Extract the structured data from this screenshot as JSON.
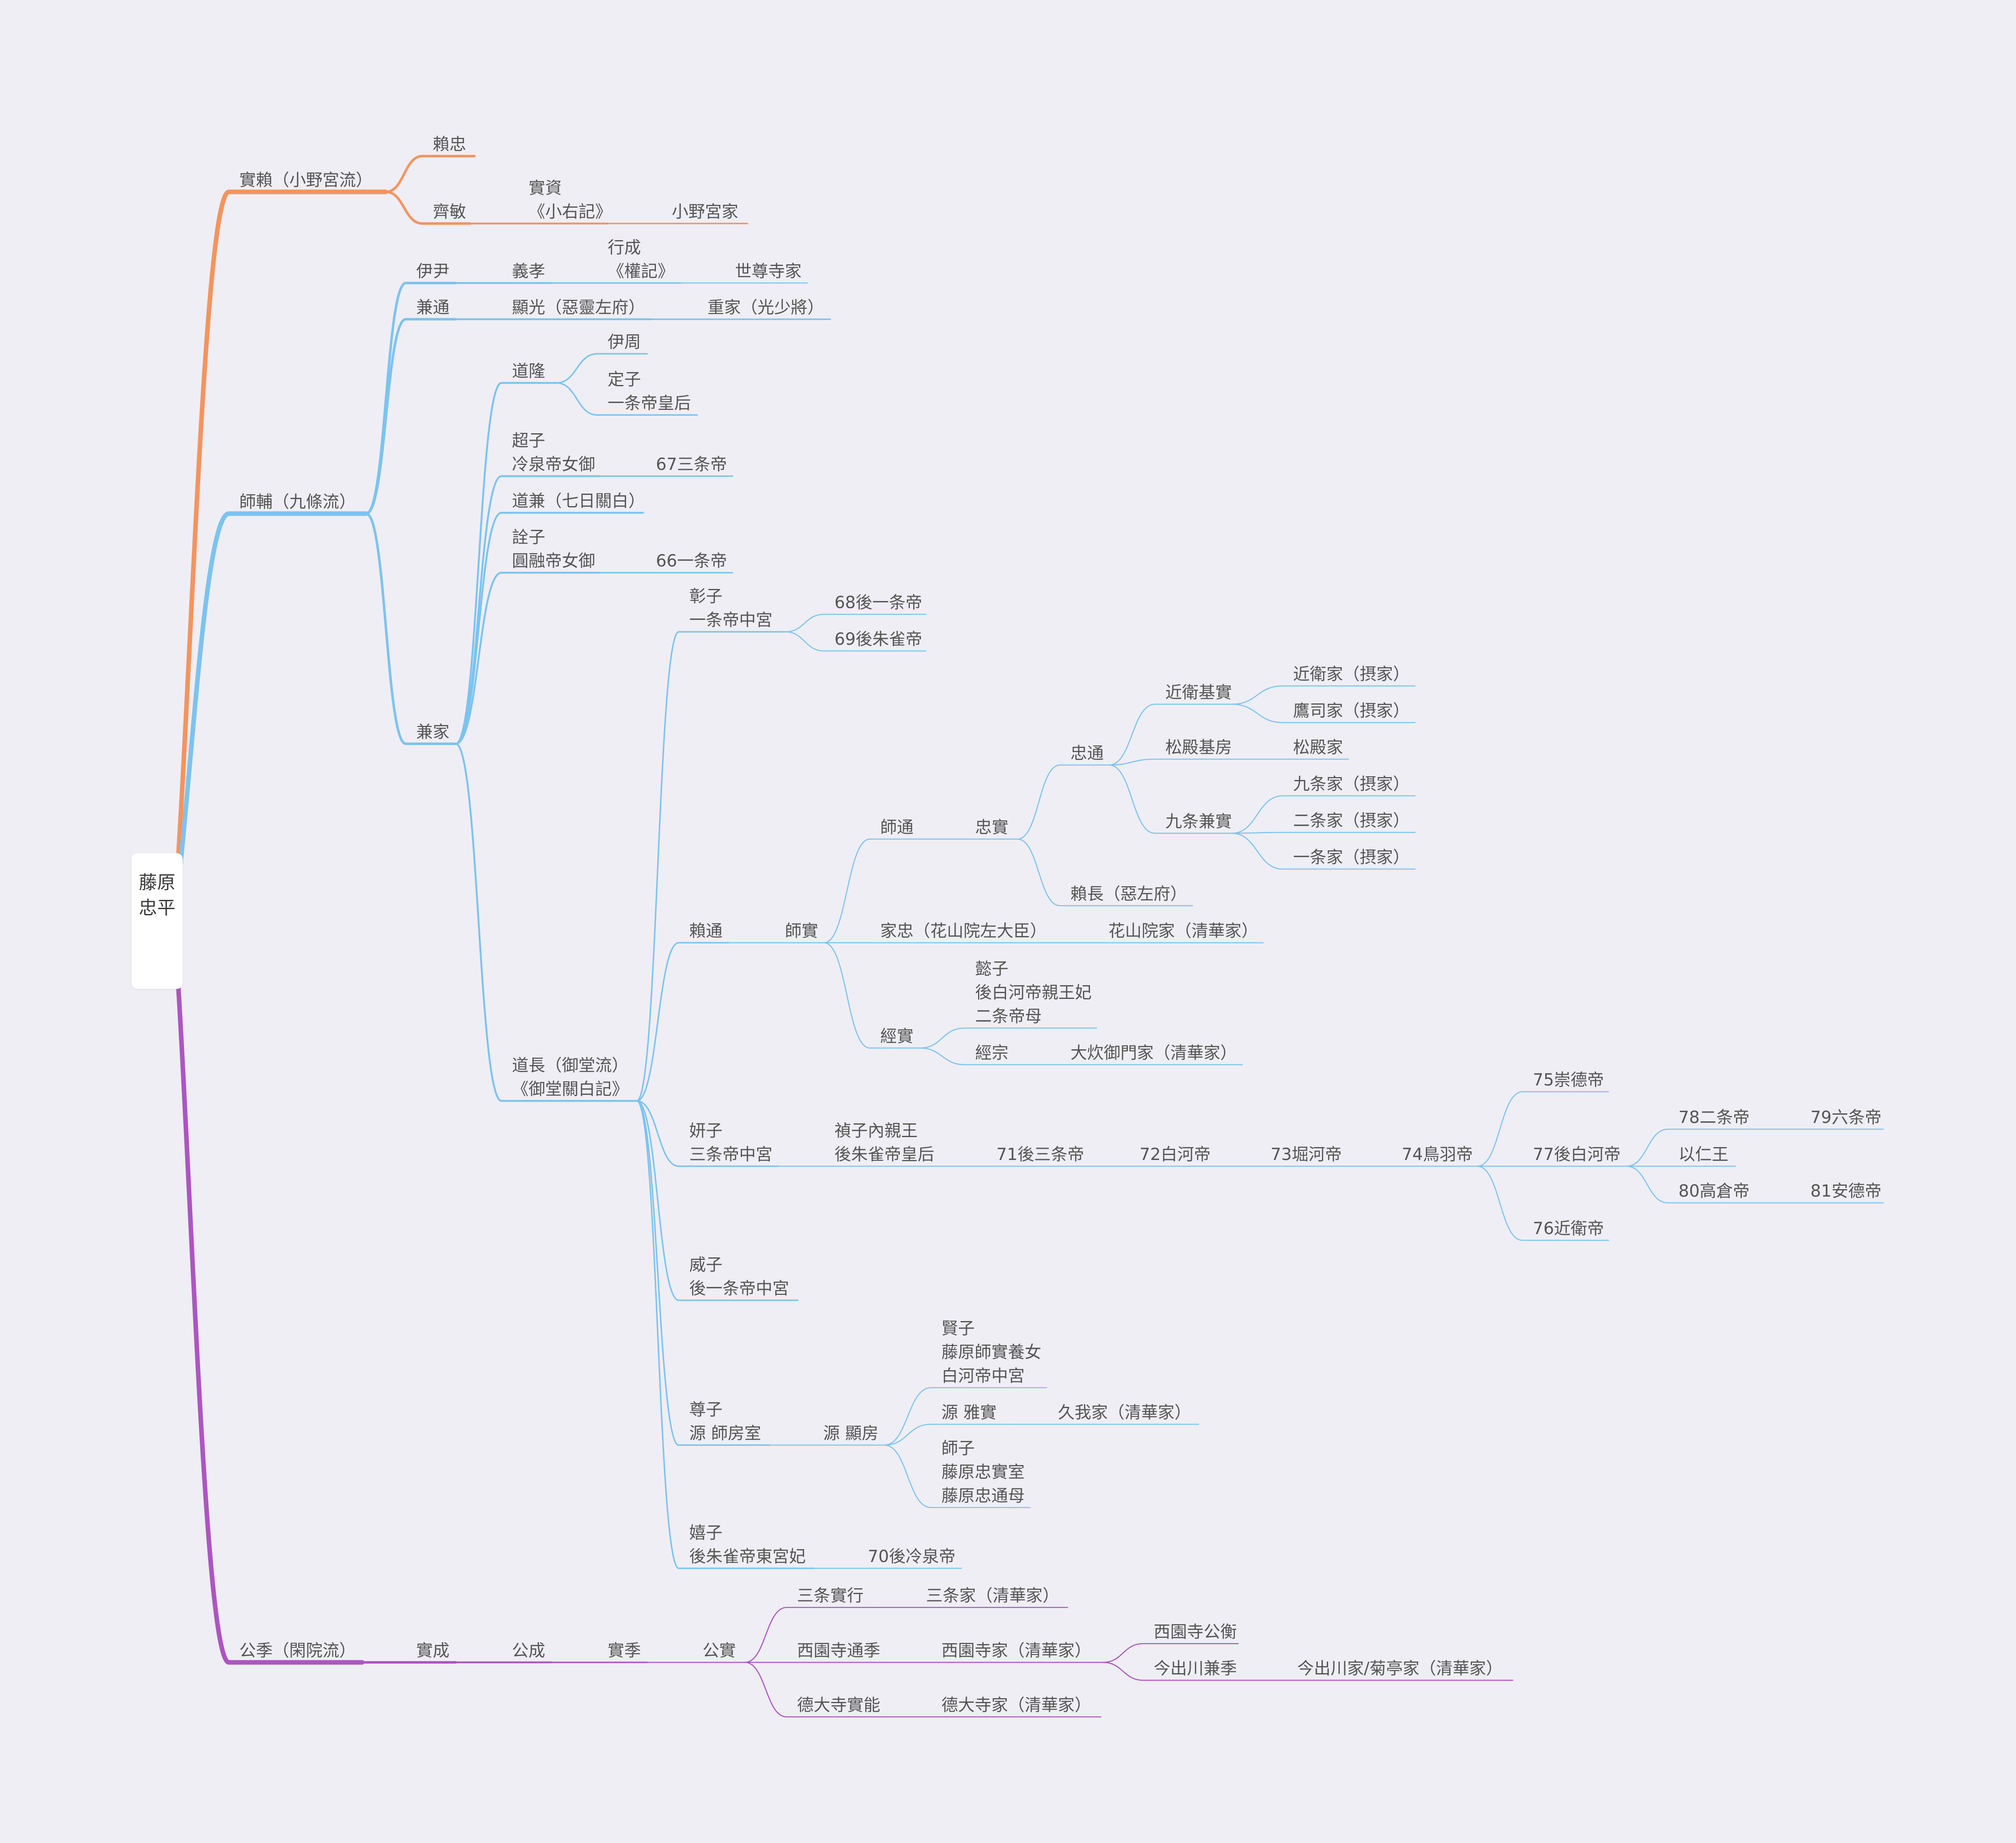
{
  "colors": {
    "background": "#efeef4",
    "orange": "#f4945f",
    "blue": "#7cc3ef",
    "purple": "#ad55c2",
    "text": "#555555"
  },
  "root": {
    "label": "藤原忠平"
  },
  "nodes": [
    {
      "id": "saneyori",
      "parent": "root",
      "color": "orange",
      "lines": [
        "實賴（小野宮流）"
      ]
    },
    {
      "id": "yoritada",
      "parent": "saneyori",
      "color": "orange",
      "lines": [
        "賴忠"
      ]
    },
    {
      "id": "tadatoshi",
      "parent": "saneyori",
      "color": "orange",
      "lines": [
        "齊敏"
      ]
    },
    {
      "id": "sanesuke",
      "parent": "tadatoshi",
      "color": "orange",
      "lines": [
        "實資",
        "《小右記》"
      ]
    },
    {
      "id": "onomiya",
      "parent": "sanesuke",
      "color": "orange",
      "lines": [
        "小野宮家"
      ]
    },
    {
      "id": "morosuke",
      "parent": "root",
      "color": "blue",
      "lines": [
        "師輔（九條流）"
      ]
    },
    {
      "id": "koremasa",
      "parent": "morosuke",
      "color": "blue",
      "lines": [
        "伊尹"
      ]
    },
    {
      "id": "yoshitaka",
      "parent": "koremasa",
      "color": "blue",
      "lines": [
        "義孝"
      ]
    },
    {
      "id": "yukinari",
      "parent": "yoshitaka",
      "color": "blue",
      "lines": [
        "行成",
        "《權記》"
      ]
    },
    {
      "id": "sesonji",
      "parent": "yukinari",
      "color": "blue",
      "lines": [
        "世尊寺家"
      ]
    },
    {
      "id": "kanemichi",
      "parent": "morosuke",
      "color": "blue",
      "lines": [
        "兼通"
      ]
    },
    {
      "id": "akimitsu",
      "parent": "kanemichi",
      "color": "blue",
      "lines": [
        "顯光（惡靈左府）"
      ]
    },
    {
      "id": "shigeie",
      "parent": "akimitsu",
      "color": "blue",
      "lines": [
        "重家（光少將）"
      ]
    },
    {
      "id": "kaneie",
      "parent": "morosuke",
      "color": "blue",
      "lines": [
        "兼家"
      ]
    },
    {
      "id": "michitaka",
      "parent": "kaneie",
      "color": "blue",
      "lines": [
        "道隆"
      ]
    },
    {
      "id": "korechika",
      "parent": "michitaka",
      "color": "blue",
      "lines": [
        "伊周"
      ]
    },
    {
      "id": "teishi",
      "parent": "michitaka",
      "color": "blue",
      "lines": [
        "定子",
        "一条帝皇后"
      ]
    },
    {
      "id": "choshi",
      "parent": "kaneie",
      "color": "blue",
      "lines": [
        "超子",
        "冷泉帝女御"
      ]
    },
    {
      "id": "sanjo67",
      "parent": "choshi",
      "color": "blue",
      "lines": [
        "67三条帝"
      ]
    },
    {
      "id": "michikane",
      "parent": "kaneie",
      "color": "blue",
      "lines": [
        "道兼（七日關白）"
      ]
    },
    {
      "id": "senshi",
      "parent": "kaneie",
      "color": "blue",
      "lines": [
        "詮子",
        "圓融帝女御"
      ]
    },
    {
      "id": "ichijo66",
      "parent": "senshi",
      "color": "blue",
      "lines": [
        "66一条帝"
      ]
    },
    {
      "id": "michinaga",
      "parent": "kaneie",
      "color": "blue",
      "lines": [
        "道長（御堂流）",
        "《御堂關白記》"
      ]
    },
    {
      "id": "shoshi",
      "parent": "michinaga",
      "color": "blue",
      "lines": [
        "彰子",
        "一条帝中宮"
      ]
    },
    {
      "id": "goichijo68",
      "parent": "shoshi",
      "color": "blue",
      "lines": [
        "68後一条帝"
      ]
    },
    {
      "id": "gosuzaku69",
      "parent": "shoshi",
      "color": "blue",
      "lines": [
        "69後朱雀帝"
      ]
    },
    {
      "id": "yorimichi",
      "parent": "michinaga",
      "color": "blue",
      "lines": [
        "賴通"
      ]
    },
    {
      "id": "morozane",
      "parent": "yorimichi",
      "color": "blue",
      "lines": [
        "師實"
      ]
    },
    {
      "id": "moromichi",
      "parent": "morozane",
      "color": "blue",
      "lines": [
        "師通"
      ]
    },
    {
      "id": "tadazane",
      "parent": "moromichi",
      "color": "blue",
      "lines": [
        "忠實"
      ]
    },
    {
      "id": "tadamichi",
      "parent": "tadazane",
      "color": "blue",
      "lines": [
        "忠通"
      ]
    },
    {
      "id": "konoe_motozane",
      "parent": "tadamichi",
      "color": "blue",
      "lines": [
        "近衛基實"
      ]
    },
    {
      "id": "konoe_ke",
      "parent": "konoe_motozane",
      "color": "blue",
      "lines": [
        "近衛家（摂家）"
      ]
    },
    {
      "id": "takatsukasa",
      "parent": "konoe_motozane",
      "color": "blue",
      "lines": [
        "鷹司家（摂家）"
      ]
    },
    {
      "id": "matsudono_motofusa",
      "parent": "tadamichi",
      "color": "blue",
      "lines": [
        "松殿基房"
      ]
    },
    {
      "id": "matsudono_ke",
      "parent": "matsudono_motofusa",
      "color": "blue",
      "lines": [
        "松殿家"
      ]
    },
    {
      "id": "kujo_kanezane",
      "parent": "tadamichi",
      "color": "blue",
      "lines": [
        "九条兼實"
      ]
    },
    {
      "id": "kujo_ke",
      "parent": "kujo_kanezane",
      "color": "blue",
      "lines": [
        "九条家（摂家）"
      ]
    },
    {
      "id": "nijo_ke",
      "parent": "kujo_kanezane",
      "color": "blue",
      "lines": [
        "二条家（摂家）"
      ]
    },
    {
      "id": "ichijo_ke",
      "parent": "kujo_kanezane",
      "color": "blue",
      "lines": [
        "一条家（摂家）"
      ]
    },
    {
      "id": "yorinaga",
      "parent": "tadazane",
      "color": "blue",
      "lines": [
        "賴長（惡左府）"
      ]
    },
    {
      "id": "ietada",
      "parent": "morozane",
      "color": "blue",
      "lines": [
        "家忠（花山院左大臣）"
      ]
    },
    {
      "id": "kazanin",
      "parent": "ietada",
      "color": "blue",
      "lines": [
        "花山院家（清華家）"
      ]
    },
    {
      "id": "tsunezane",
      "parent": "morozane",
      "color": "blue",
      "lines": [
        "經實"
      ]
    },
    {
      "id": "ishi",
      "parent": "tsunezane",
      "color": "blue",
      "lines": [
        "懿子",
        "後白河帝親王妃",
        "二条帝母"
      ]
    },
    {
      "id": "tsunemune",
      "parent": "tsunezane",
      "color": "blue",
      "lines": [
        "經宗"
      ]
    },
    {
      "id": "oimikado",
      "parent": "tsunemune",
      "color": "blue",
      "lines": [
        "大炊御門家（清華家）"
      ]
    },
    {
      "id": "kenshi",
      "parent": "michinaga",
      "color": "blue",
      "lines": [
        "妍子",
        "三条帝中宮"
      ]
    },
    {
      "id": "teishi_naishinno",
      "parent": "kenshi",
      "color": "blue",
      "lines": [
        "禎子內親王",
        "後朱雀帝皇后"
      ]
    },
    {
      "id": "gosanjo71",
      "parent": "teishi_naishinno",
      "color": "blue",
      "lines": [
        "71後三条帝"
      ]
    },
    {
      "id": "shirakawa72",
      "parent": "gosanjo71",
      "color": "blue",
      "lines": [
        "72白河帝"
      ]
    },
    {
      "id": "horikawa73",
      "parent": "shirakawa72",
      "color": "blue",
      "lines": [
        "73堀河帝"
      ]
    },
    {
      "id": "toba74",
      "parent": "horikawa73",
      "color": "blue",
      "lines": [
        "74鳥羽帝"
      ]
    },
    {
      "id": "sutoku75",
      "parent": "toba74",
      "color": "blue",
      "lines": [
        "75崇德帝"
      ]
    },
    {
      "id": "goshirakawa77",
      "parent": "toba74",
      "color": "blue",
      "lines": [
        "77後白河帝"
      ]
    },
    {
      "id": "nijo78",
      "parent": "goshirakawa77",
      "color": "blue",
      "lines": [
        "78二条帝"
      ]
    },
    {
      "id": "rokujo79",
      "parent": "nijo78",
      "color": "blue",
      "lines": [
        "79六条帝"
      ]
    },
    {
      "id": "mochihito",
      "parent": "goshirakawa77",
      "color": "blue",
      "lines": [
        "以仁王"
      ]
    },
    {
      "id": "takakura80",
      "parent": "goshirakawa77",
      "color": "blue",
      "lines": [
        "80高倉帝"
      ]
    },
    {
      "id": "antoku81",
      "parent": "takakura80",
      "color": "blue",
      "lines": [
        "81安德帝"
      ]
    },
    {
      "id": "konoe76",
      "parent": "toba74",
      "color": "blue",
      "lines": [
        "76近衛帝"
      ]
    },
    {
      "id": "ishi_goichijo",
      "parent": "michinaga",
      "color": "blue",
      "lines": [
        "威子",
        "後一条帝中宮"
      ]
    },
    {
      "id": "sonshi",
      "parent": "michinaga",
      "color": "blue",
      "lines": [
        "尊子",
        "源 師房室"
      ]
    },
    {
      "id": "akifusa",
      "parent": "sonshi",
      "color": "blue",
      "lines": [
        "源 顯房"
      ]
    },
    {
      "id": "kenshi2",
      "parent": "akifusa",
      "color": "blue",
      "lines": [
        "賢子",
        "藤原師實養女",
        "白河帝中宮"
      ]
    },
    {
      "id": "masazane",
      "parent": "akifusa",
      "color": "blue",
      "lines": [
        "源 雅實"
      ]
    },
    {
      "id": "koga",
      "parent": "masazane",
      "color": "blue",
      "lines": [
        "久我家（清華家）"
      ]
    },
    {
      "id": "shishi",
      "parent": "akifusa",
      "color": "blue",
      "lines": [
        "師子",
        "藤原忠實室",
        "藤原忠通母"
      ]
    },
    {
      "id": "kishi",
      "parent": "michinaga",
      "color": "blue",
      "lines": [
        "嬉子",
        "後朱雀帝東宮妃"
      ]
    },
    {
      "id": "goreizei70",
      "parent": "kishi",
      "color": "blue",
      "lines": [
        "70後冷泉帝"
      ]
    },
    {
      "id": "kinsue",
      "parent": "root",
      "color": "purple",
      "lines": [
        "公季（閑院流）"
      ]
    },
    {
      "id": "sanenari",
      "parent": "kinsue",
      "color": "purple",
      "lines": [
        "實成"
      ]
    },
    {
      "id": "kinnari",
      "parent": "sanenari",
      "color": "purple",
      "lines": [
        "公成"
      ]
    },
    {
      "id": "sanesue",
      "parent": "kinnari",
      "color": "purple",
      "lines": [
        "實季"
      ]
    },
    {
      "id": "kinzane",
      "parent": "sanesue",
      "color": "purple",
      "lines": [
        "公實"
      ]
    },
    {
      "id": "sanjo_saneyuki",
      "parent": "kinzane",
      "color": "purple",
      "lines": [
        "三条實行"
      ]
    },
    {
      "id": "sanjo_ke",
      "parent": "sanjo_saneyuki",
      "color": "purple",
      "lines": [
        "三条家（清華家）"
      ]
    },
    {
      "id": "saionji_michisue",
      "parent": "kinzane",
      "color": "purple",
      "lines": [
        "西園寺通季"
      ]
    },
    {
      "id": "saionji_ke",
      "parent": "saionji_michisue",
      "color": "purple",
      "lines": [
        "西園寺家（清華家）"
      ]
    },
    {
      "id": "saionji_kinhira",
      "parent": "saionji_ke",
      "color": "purple",
      "lines": [
        "西園寺公衡"
      ]
    },
    {
      "id": "imadegawa_kanesue",
      "parent": "saionji_ke",
      "color": "purple",
      "lines": [
        "今出川兼季"
      ]
    },
    {
      "id": "imadegawa_ke",
      "parent": "imadegawa_kanesue",
      "color": "purple",
      "lines": [
        "今出川家/菊亭家（清華家）"
      ]
    },
    {
      "id": "tokudaiji_saneyoshi",
      "parent": "kinzane",
      "color": "purple",
      "lines": [
        "德大寺實能"
      ]
    },
    {
      "id": "tokudaiji_ke",
      "parent": "tokudaiji_saneyoshi",
      "color": "purple",
      "lines": [
        "德大寺家（清華家）"
      ]
    }
  ]
}
